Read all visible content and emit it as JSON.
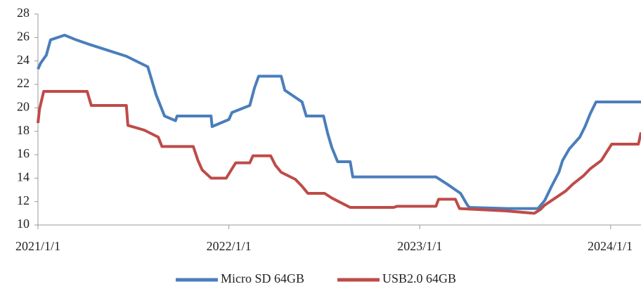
{
  "chart_data": {
    "type": "line",
    "xlim": [
      "2021/1/1",
      "2024/2/28"
    ],
    "xticks": [
      "2021/1/1",
      "2022/1/1",
      "2023/1/1",
      "2024/1/1"
    ],
    "ylim": [
      10,
      28
    ],
    "yticks": [
      10,
      12,
      14,
      16,
      18,
      20,
      22,
      24,
      26,
      28
    ],
    "grid": false,
    "legend": "bottom",
    "series": [
      {
        "name": "Micro SD 64GB",
        "color": "#4a7ebb",
        "x": [
          "2021/1/1",
          "2021/1/6",
          "2021/1/17",
          "2021/1/25",
          "2021/2/21",
          "2021/3/15",
          "2021/4/10",
          "2021/6/19",
          "2021/7/30",
          "2021/8/7",
          "2021/8/15",
          "2021/8/23",
          "2021/8/31",
          "2021/9/21",
          "2021/9/24",
          "2021/11/28",
          "2021/11/30",
          "2022/1/1",
          "2022/1/7",
          "2022/2/10",
          "2022/2/19",
          "2022/2/27",
          "2022/4/11",
          "2022/4/18",
          "2022/5/21",
          "2022/5/29",
          "2022/7/1",
          "2022/7/9",
          "2022/7/17",
          "2022/7/28",
          "2022/8/21",
          "2022/8/26",
          "2023/2/1",
          "2023/2/22",
          "2023/3/20",
          "2023/4/2",
          "2023/4/6",
          "2023/6/18",
          "2023/8/15",
          "2023/8/28",
          "2023/9/10",
          "2023/9/24",
          "2023/10/1",
          "2023/10/14",
          "2023/11/3",
          "2023/11/13",
          "2023/11/23",
          "2023/12/4",
          "2024/2/28"
        ],
        "values": [
          23.3,
          23.8,
          24.5,
          25.8,
          26.2,
          25.8,
          25.4,
          24.4,
          23.5,
          22.3,
          21.1,
          20.2,
          19.3,
          18.9,
          19.3,
          19.3,
          18.4,
          19.0,
          19.6,
          20.2,
          21.7,
          22.7,
          22.7,
          21.5,
          20.5,
          19.3,
          19.3,
          17.8,
          16.6,
          15.4,
          15.4,
          14.1,
          14.1,
          13.5,
          12.7,
          11.7,
          11.5,
          11.4,
          11.4,
          12.1,
          13.3,
          14.5,
          15.5,
          16.5,
          17.5,
          18.4,
          19.5,
          20.5,
          20.5
        ]
      },
      {
        "name": "USB2.0 64GB",
        "color": "#be4b48",
        "x": [
          "2021/1/1",
          "2021/1/4",
          "2021/1/12",
          "2021/4/5",
          "2021/4/13",
          "2021/6/19",
          "2021/6/22",
          "2021/7/23",
          "2021/8/19",
          "2021/8/26",
          "2021/10/25",
          "2021/11/3",
          "2021/11/11",
          "2021/11/28",
          "2021/12/27",
          "2022/1/7",
          "2022/1/14",
          "2022/2/10",
          "2022/2/16",
          "2022/3/22",
          "2022/3/31",
          "2022/4/11",
          "2022/5/8",
          "2022/5/21",
          "2022/6/1",
          "2022/7/3",
          "2022/7/17",
          "2022/7/30",
          "2022/8/21",
          "2022/11/12",
          "2022/11/19",
          "2023/2/1",
          "2023/2/6",
          "2023/3/10",
          "2023/3/18",
          "2023/6/15",
          "2023/8/8",
          "2023/8/19",
          "2023/8/28",
          "2023/9/17",
          "2023/10/7",
          "2023/10/21",
          "2023/11/10",
          "2023/11/23",
          "2023/12/14",
          "2024/1/3",
          "2024/2/23",
          "2024/2/28"
        ],
        "values": [
          18.7,
          19.9,
          21.4,
          21.4,
          20.2,
          20.2,
          18.5,
          18.1,
          17.5,
          16.7,
          16.7,
          15.5,
          14.7,
          14.0,
          14.0,
          14.8,
          15.3,
          15.3,
          15.9,
          15.9,
          15.1,
          14.5,
          13.9,
          13.3,
          12.7,
          12.7,
          12.3,
          12.0,
          11.5,
          11.5,
          11.6,
          11.6,
          12.2,
          12.2,
          11.4,
          11.2,
          11.0,
          11.3,
          11.7,
          12.3,
          12.9,
          13.5,
          14.2,
          14.8,
          15.5,
          16.9,
          16.9,
          17.9
        ]
      }
    ]
  }
}
